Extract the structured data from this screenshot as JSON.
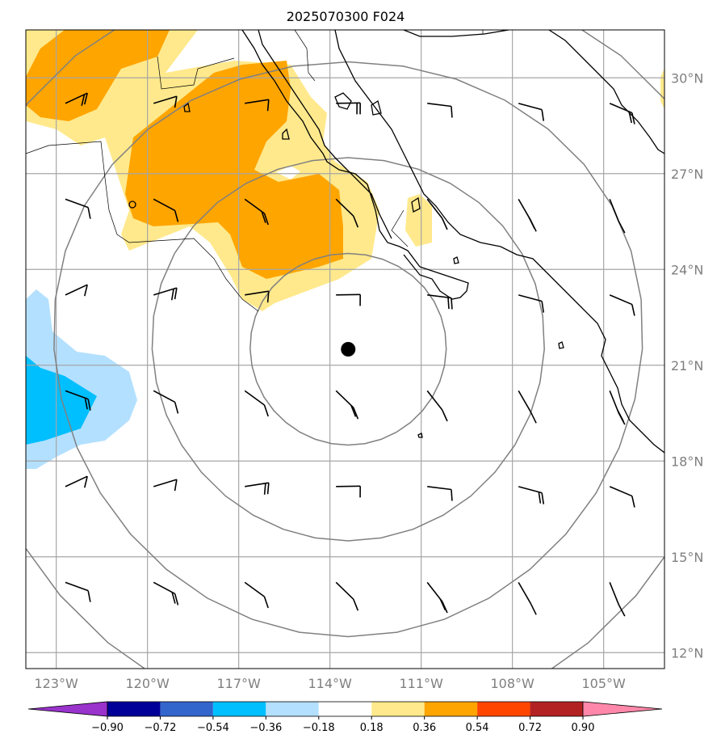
{
  "title": "2025070300 F024",
  "map": {
    "lon_range": [
      -124.0,
      -103.0
    ],
    "lat_range": [
      11.5,
      31.5
    ],
    "projection": "plate carree",
    "grid": true,
    "center_marker": {
      "lon": -113.4,
      "lat": 21.5
    },
    "range_rings_deg": [
      3,
      6,
      9,
      12
    ]
  },
  "axes": {
    "lat_ticks": [
      {
        "value": 12,
        "label": "12°N"
      },
      {
        "value": 15,
        "label": "15°N"
      },
      {
        "value": 18,
        "label": "18°N"
      },
      {
        "value": 21,
        "label": "21°N"
      },
      {
        "value": 24,
        "label": "24°N"
      },
      {
        "value": 27,
        "label": "27°N"
      },
      {
        "value": 30,
        "label": "30°N"
      }
    ],
    "lon_ticks": [
      {
        "value": -123,
        "label": "123°W"
      },
      {
        "value": -120,
        "label": "120°W"
      },
      {
        "value": -117,
        "label": "117°W"
      },
      {
        "value": -114,
        "label": "114°W"
      },
      {
        "value": -111,
        "label": "111°W"
      },
      {
        "value": -108,
        "label": "108°W"
      },
      {
        "value": -105,
        "label": "105°W"
      }
    ]
  },
  "colorbar": {
    "labels": [
      "−0.90",
      "−0.72",
      "−0.54",
      "−0.36",
      "−0.18",
      "0.18",
      "0.36",
      "0.54",
      "0.72",
      "0.90"
    ],
    "colors": [
      "#9933cc",
      "#000099",
      "#3366cc",
      "#00bfff",
      "#b3e0ff",
      "#ffffff",
      "#ffe98c",
      "#ffa500",
      "#ff4500",
      "#b22222",
      "#ff88aa"
    ]
  },
  "shading": {
    "positive_low": "#ffe98c",
    "positive_high": "#ffa500",
    "negative_low": "#b3e0ff",
    "negative_high": "#00bfff"
  }
}
